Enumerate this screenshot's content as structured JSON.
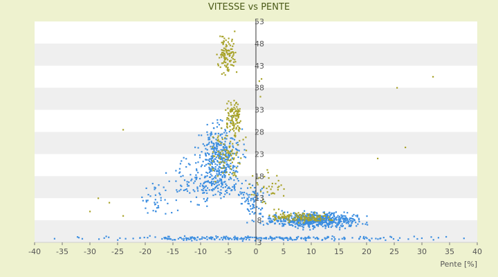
{
  "chart_data": {
    "type": "scatter",
    "title": "VITESSE vs PENTE",
    "xlabel": "Pente [%]",
    "ylabel": "",
    "xlim": [
      -40,
      40
    ],
    "ylim": [
      3,
      53
    ],
    "x_ticks": [
      -40,
      -35,
      -30,
      -25,
      -20,
      -15,
      -10,
      -5,
      0,
      5,
      10,
      15,
      20,
      25,
      30,
      35,
      40
    ],
    "y_ticks": [
      3,
      8,
      13,
      18,
      23,
      28,
      33,
      38,
      43,
      48,
      53
    ],
    "grid": "horizontal bands",
    "legend": "none",
    "colors": {
      "series_blue": "#3c8ee0",
      "series_olive": "#a8a32a",
      "band": "#efefef",
      "plot_bg": "#ffffff",
      "axis": "#333333"
    },
    "series": [
      {
        "color": "#3c8ee0",
        "clusters": [
          {
            "x_range": [
              -42,
              42
            ],
            "y_range": [
              3.3,
              4.6
            ],
            "n": 260
          },
          {
            "x_range": [
              -1,
              22
            ],
            "y_range": [
              5.5,
              10.5
            ],
            "n": 600
          },
          {
            "x_range": [
              -12,
              -1
            ],
            "y_range": [
              10,
              33
            ],
            "n": 420
          },
          {
            "x_range": [
              -18,
              -3
            ],
            "y_range": [
              8,
              25
            ],
            "n": 110
          },
          {
            "x_range": [
              -22,
              -14
            ],
            "y_range": [
              8,
              18
            ],
            "n": 35
          },
          {
            "x_range": [
              -4,
              3
            ],
            "y_range": [
              6,
              18
            ],
            "n": 80
          }
        ]
      },
      {
        "color": "#a8a32a",
        "clusters": [
          {
            "x_range": [
              -7.5,
              -3
            ],
            "y_range": [
              39,
              52
            ],
            "n": 110
          },
          {
            "x_range": [
              -6,
              -2
            ],
            "y_range": [
              25,
              38
            ],
            "n": 110
          },
          {
            "x_range": [
              -10,
              0
            ],
            "y_range": [
              15,
              30
            ],
            "n": 90
          },
          {
            "x_range": [
              0,
              16
            ],
            "y_range": [
              7,
              10.5
            ],
            "n": 130
          },
          {
            "x_range": [
              -3,
              7
            ],
            "y_range": [
              9,
              22
            ],
            "n": 40
          }
        ],
        "points": [
          [
            -24,
            28.5
          ],
          [
            -26.5,
            12
          ],
          [
            -28.5,
            13
          ],
          [
            -30,
            10
          ],
          [
            -24,
            9
          ],
          [
            25.5,
            38
          ],
          [
            32,
            40.5
          ],
          [
            27,
            24.5
          ],
          [
            22,
            22
          ],
          [
            0.6,
            39.5
          ],
          [
            0.8,
            36
          ],
          [
            1,
            40
          ]
        ]
      }
    ]
  }
}
